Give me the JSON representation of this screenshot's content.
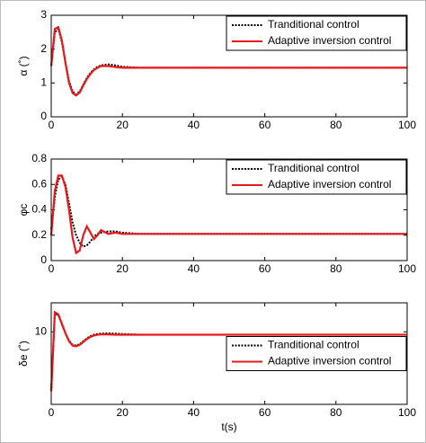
{
  "chart_data": [
    {
      "type": "line",
      "y_label": "α (˚)",
      "x": [
        0,
        1,
        2,
        3,
        4,
        5,
        6,
        7,
        8,
        9,
        10,
        11,
        12,
        13,
        14,
        16,
        18,
        20,
        25,
        30,
        40,
        50,
        60,
        70,
        80,
        90,
        100
      ],
      "series": [
        {
          "name": "Tranditional control",
          "color": "#000000",
          "linestyle": "dotted",
          "values": [
            1.5,
            2.5,
            2.6,
            2.2,
            1.6,
            1.05,
            0.75,
            0.66,
            0.75,
            0.95,
            1.15,
            1.3,
            1.4,
            1.48,
            1.52,
            1.55,
            1.52,
            1.48,
            1.45,
            1.45,
            1.45,
            1.45,
            1.45,
            1.45,
            1.45,
            1.45,
            1.45
          ]
        },
        {
          "name": "Adaptive inversion control",
          "color": "#e8191a",
          "linestyle": "solid",
          "values": [
            1.5,
            2.6,
            2.65,
            2.25,
            1.6,
            1.0,
            0.7,
            0.63,
            0.72,
            0.92,
            1.12,
            1.27,
            1.38,
            1.45,
            1.5,
            1.5,
            1.47,
            1.45,
            1.45,
            1.45,
            1.45,
            1.45,
            1.45,
            1.45,
            1.45,
            1.45,
            1.45
          ]
        }
      ],
      "xlim": [
        0,
        100
      ],
      "xticks": [
        0,
        20,
        40,
        60,
        80,
        100
      ],
      "ylim": [
        0,
        3
      ],
      "yticks": [
        0,
        1,
        2,
        3
      ],
      "legend": "upper right"
    },
    {
      "type": "line",
      "y_label": "φc",
      "x": [
        0,
        1,
        2,
        3,
        4,
        5,
        6,
        7,
        8,
        9,
        10,
        11,
        12,
        13,
        14,
        16,
        18,
        20,
        25,
        30,
        40,
        50,
        60,
        70,
        80,
        90,
        100
      ],
      "series": [
        {
          "name": "Tranditional control",
          "color": "#000000",
          "linestyle": "dotted",
          "values": [
            0.25,
            0.5,
            0.64,
            0.66,
            0.6,
            0.45,
            0.3,
            0.2,
            0.14,
            0.11,
            0.12,
            0.15,
            0.19,
            0.21,
            0.22,
            0.23,
            0.23,
            0.22,
            0.21,
            0.21,
            0.21,
            0.21,
            0.21,
            0.21,
            0.21,
            0.21,
            0.21
          ]
        },
        {
          "name": "Adaptive inversion control",
          "color": "#e8191a",
          "linestyle": "solid",
          "values": [
            0.2,
            0.55,
            0.67,
            0.67,
            0.58,
            0.4,
            0.18,
            0.06,
            0.08,
            0.2,
            0.27,
            0.22,
            0.17,
            0.2,
            0.24,
            0.21,
            0.22,
            0.21,
            0.21,
            0.21,
            0.21,
            0.21,
            0.21,
            0.21,
            0.21,
            0.21,
            0.21
          ]
        }
      ],
      "xlim": [
        0,
        100
      ],
      "xticks": [
        0,
        20,
        40,
        60,
        80,
        100
      ],
      "ylim": [
        0,
        0.8
      ],
      "yticks": [
        0,
        0.2,
        0.4,
        0.6,
        0.8
      ],
      "legend": "upper right"
    },
    {
      "type": "line",
      "y_label": "δe (˚)",
      "x_label": "t(s)",
      "x": [
        0,
        1,
        2,
        3,
        4,
        5,
        6,
        7,
        8,
        9,
        10,
        11,
        12,
        13,
        14,
        16,
        18,
        20,
        25,
        30,
        40,
        50,
        60,
        70,
        80,
        90,
        100
      ],
      "series": [
        {
          "name": "Tranditional control",
          "color": "#000000",
          "linestyle": "dotted",
          "values": [
            1.8,
            12.5,
            12.3,
            11,
            9.8,
            8.8,
            8.2,
            8.1,
            8.3,
            8.7,
            9.1,
            9.4,
            9.6,
            9.7,
            9.75,
            9.8,
            9.75,
            9.7,
            9.6,
            9.6,
            9.6,
            9.6,
            9.6,
            9.6,
            9.6,
            9.6,
            9.6
          ]
        },
        {
          "name": "Adaptive inversion control",
          "color": "#e8191a",
          "linestyle": "solid",
          "values": [
            1.8,
            12.7,
            12.4,
            11.1,
            9.8,
            8.7,
            8.1,
            8.0,
            8.2,
            8.6,
            9.0,
            9.3,
            9.5,
            9.6,
            9.65,
            9.65,
            9.6,
            9.6,
            9.6,
            9.6,
            9.6,
            9.6,
            9.6,
            9.6,
            9.6,
            9.6,
            9.6
          ]
        }
      ],
      "xlim": [
        0,
        100
      ],
      "xticks": [
        0,
        20,
        40,
        60,
        80,
        100
      ],
      "ylim": [
        0,
        14
      ],
      "yticks": [
        10
      ],
      "legend": "center right"
    }
  ]
}
